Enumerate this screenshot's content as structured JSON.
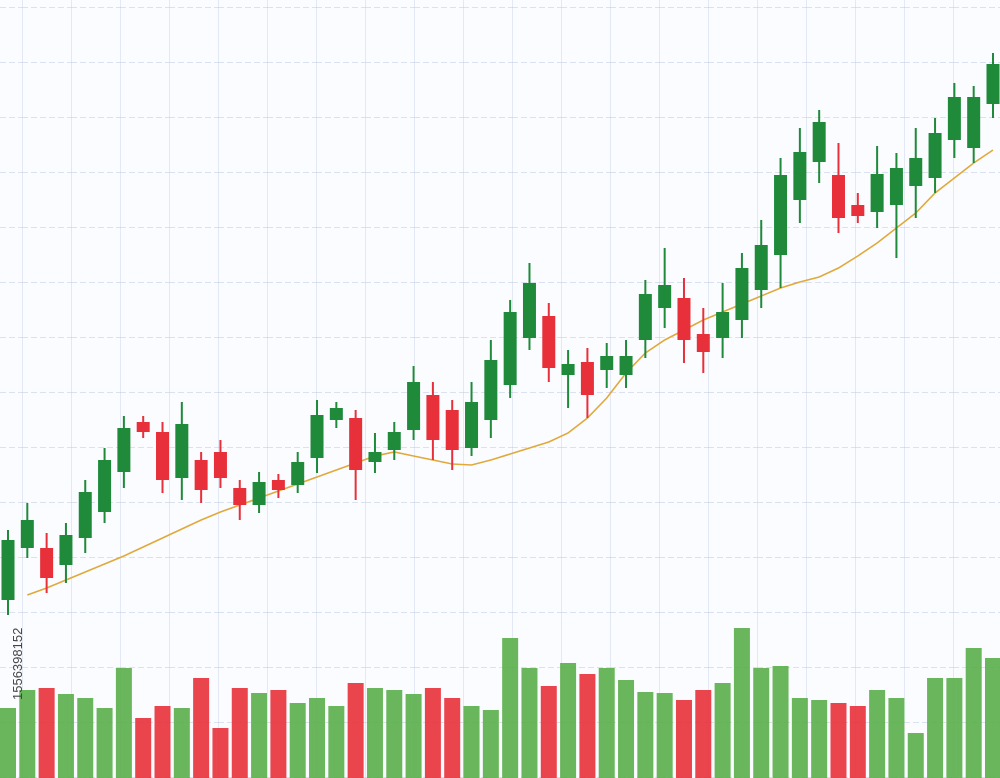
{
  "chart_data": {
    "type": "candlestick",
    "annotation": "1556398152",
    "categories": [
      null,
      null,
      null,
      null,
      null,
      null,
      null,
      null,
      null,
      null,
      null,
      null,
      null,
      null,
      null,
      null,
      null,
      null,
      null,
      null,
      null,
      null,
      null,
      null,
      null,
      null,
      null,
      null,
      null,
      null,
      null,
      null,
      null,
      null,
      null,
      null,
      null,
      null,
      null,
      null,
      null,
      null,
      null,
      null,
      null,
      null,
      null,
      null,
      null,
      null,
      null,
      null
    ],
    "open": [
      178,
      230,
      230,
      213,
      240,
      266,
      306,
      356,
      346,
      300,
      318,
      326,
      290,
      273,
      298,
      293,
      320,
      358,
      360,
      316,
      328,
      348,
      383,
      368,
      330,
      358,
      393,
      440,
      462,
      403,
      416,
      408,
      403,
      438,
      470,
      480,
      444,
      440,
      458,
      488,
      523,
      578,
      616,
      603,
      573,
      566,
      573,
      592,
      600,
      638,
      630,
      674
    ],
    "high": [
      248,
      275,
      245,
      255,
      298,
      330,
      362,
      362,
      356,
      376,
      326,
      338,
      298,
      306,
      304,
      326,
      378,
      376,
      368,
      345,
      356,
      412,
      396,
      378,
      396,
      438,
      478,
      515,
      475,
      428,
      430,
      435,
      438,
      498,
      530,
      500,
      470,
      495,
      525,
      558,
      620,
      650,
      668,
      635,
      585,
      632,
      625,
      650,
      660,
      695,
      692,
      725
    ],
    "low": [
      163,
      220,
      185,
      195,
      225,
      255,
      290,
      340,
      285,
      278,
      275,
      290,
      258,
      265,
      280,
      285,
      305,
      350,
      278,
      305,
      318,
      338,
      318,
      308,
      322,
      340,
      380,
      428,
      396,
      370,
      360,
      390,
      390,
      420,
      450,
      415,
      405,
      420,
      440,
      470,
      490,
      555,
      595,
      545,
      555,
      550,
      520,
      560,
      585,
      620,
      615,
      660
    ],
    "close": [
      238,
      258,
      200,
      243,
      286,
      318,
      350,
      346,
      298,
      354,
      288,
      300,
      273,
      296,
      288,
      316,
      363,
      370,
      308,
      326,
      346,
      396,
      338,
      328,
      376,
      418,
      466,
      495,
      410,
      414,
      383,
      422,
      422,
      484,
      493,
      438,
      426,
      466,
      510,
      533,
      603,
      626,
      656,
      560,
      562,
      604,
      610,
      620,
      645,
      681,
      681,
      714
    ],
    "up_color": "#1e8a3a",
    "down_color": "#e8303a",
    "ylim": [
      0,
      778
    ],
    "moving_average": {
      "color": "#e0a93a",
      "values": [
        null,
        183,
        190,
        198,
        206,
        214,
        222,
        231,
        240,
        249,
        258,
        266,
        273,
        280,
        287,
        294,
        301,
        308,
        315,
        322,
        326,
        322,
        318,
        314,
        313,
        318,
        324,
        330,
        336,
        345,
        360,
        380,
        405,
        425,
        438,
        448,
        458,
        466,
        474,
        482,
        490,
        496,
        501,
        510,
        522,
        535,
        550,
        565,
        585,
        600,
        615,
        628
      ]
    },
    "volume": {
      "up_color": "#5aae4a",
      "down_color": "#e8303a",
      "ylim": [
        0,
        160
      ],
      "values": [
        70,
        88,
        90,
        84,
        80,
        70,
        110,
        60,
        72,
        70,
        100,
        50,
        90,
        85,
        88,
        75,
        80,
        72,
        95,
        90,
        88,
        84,
        90,
        80,
        72,
        68,
        140,
        110,
        92,
        115,
        104,
        110,
        98,
        86,
        85,
        78,
        88,
        95,
        150,
        110,
        112,
        80,
        78,
        75,
        72,
        88,
        80,
        45,
        100,
        100,
        130,
        120
      ]
    }
  }
}
